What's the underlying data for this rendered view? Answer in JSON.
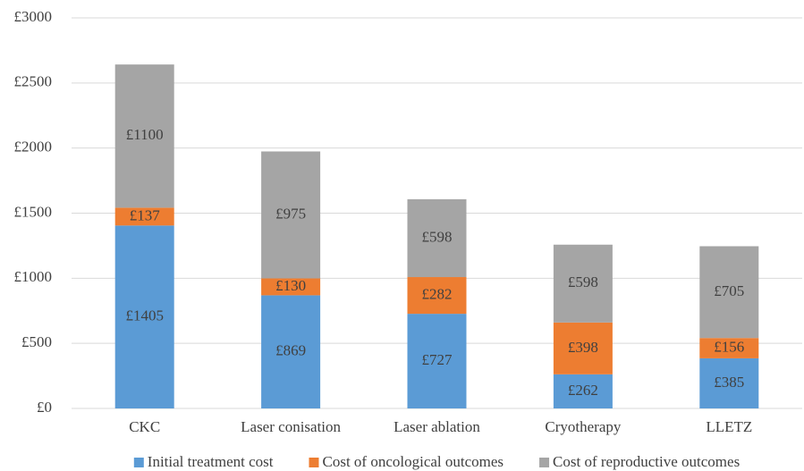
{
  "chart_data": {
    "type": "stacked_bar",
    "categories": [
      "CKC",
      "Laser conisation",
      "Laser ablation",
      "Cryotherapy",
      "LLETZ"
    ],
    "series": [
      {
        "name": "Initial treatment cost",
        "color": "#5b9bd5",
        "values": [
          1405,
          869,
          727,
          262,
          385
        ],
        "value_labels": [
          "£1405",
          "£869",
          "£727",
          "£262",
          "£385"
        ]
      },
      {
        "name": "Cost of oncological outcomes",
        "color": "#ed7d31",
        "values": [
          137,
          130,
          282,
          398,
          156
        ],
        "value_labels": [
          "£137",
          "£130",
          "£282",
          "£398",
          "£156"
        ]
      },
      {
        "name": "Cost of reproductive outcomes",
        "color": "#a5a5a5",
        "values": [
          1100,
          975,
          598,
          598,
          705
        ],
        "value_labels": [
          "£1100",
          "£975",
          "£598",
          "£598",
          "£705"
        ]
      }
    ],
    "ylim": [
      0,
      3000
    ],
    "yticks": [
      {
        "value": 0,
        "label": "£0"
      },
      {
        "value": 500,
        "label": "£500"
      },
      {
        "value": 1000,
        "label": "£1000"
      },
      {
        "value": 1500,
        "label": "£1500"
      },
      {
        "value": 2000,
        "label": "£2000"
      },
      {
        "value": 2500,
        "label": "£2500"
      },
      {
        "value": 3000,
        "label": "£3000"
      }
    ],
    "grid": true,
    "legend": "bottom"
  }
}
